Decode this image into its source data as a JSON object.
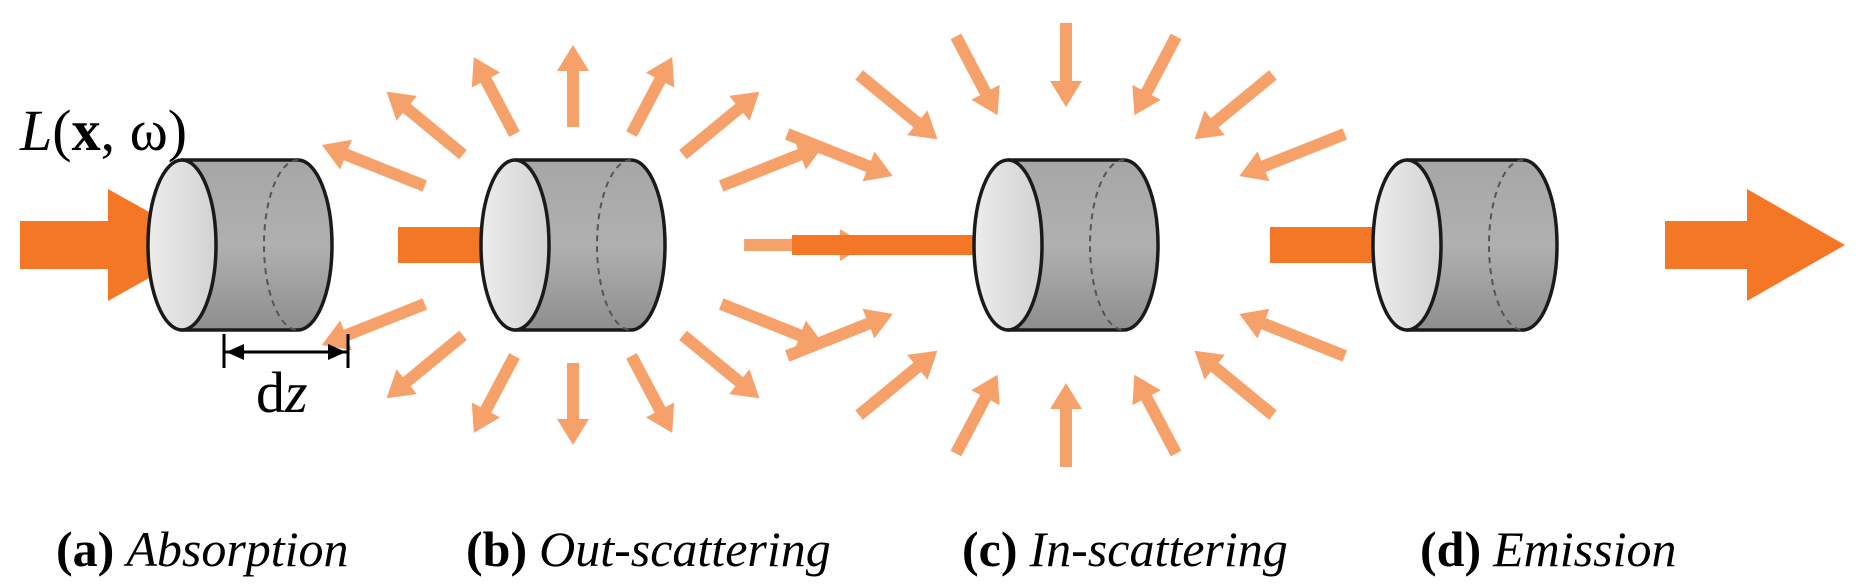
{
  "colors": {
    "main_arrow": "#f47726",
    "scatter_arrow": "#f6a06a",
    "cylinder_dark": "#9a9a9a",
    "cylinder_light": "#e2e2e2",
    "outline": "#1a1a1a"
  },
  "radiance_label": {
    "L": "L",
    "open_paren": "(",
    "x": "x",
    "comma": ", ",
    "omega": "ω",
    "close_paren": ")"
  },
  "width_label": {
    "d": "d",
    "z": "z"
  },
  "panels": [
    {
      "id": "absorption",
      "tag": "(a)",
      "name": "Absorption",
      "scatter": "none"
    },
    {
      "id": "out-scattering",
      "tag": "(b)",
      "name": "Out-scattering",
      "scatter": "outward"
    },
    {
      "id": "in-scattering",
      "tag": "(c)",
      "name": "In-scattering",
      "scatter": "inward"
    },
    {
      "id": "emission",
      "tag": "(d)",
      "name": "Emission",
      "scatter": "none"
    }
  ]
}
